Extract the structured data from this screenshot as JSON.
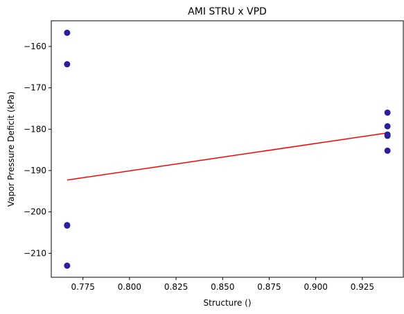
{
  "chart_data": {
    "type": "scatter",
    "title": "AMI STRU x VPD",
    "xlabel": "Structure ()",
    "ylabel": "Vapor Pressure Deficit (kPa)",
    "xlim": [
      0.758,
      0.947
    ],
    "ylim": [
      -215.8,
      -153.8
    ],
    "xticks": [
      0.775,
      0.8,
      0.825,
      0.85,
      0.875,
      0.9,
      0.925
    ],
    "xtick_labels": [
      "0.775",
      "0.800",
      "0.825",
      "0.850",
      "0.875",
      "0.900",
      "0.925"
    ],
    "yticks": [
      -160,
      -170,
      -180,
      -190,
      -200,
      -210
    ],
    "ytick_labels": [
      "−160",
      "−170",
      "−180",
      "−190",
      "−200",
      "−210"
    ],
    "grid": false,
    "points": [
      {
        "x": 0.7665,
        "y": -156.7
      },
      {
        "x": 0.7665,
        "y": -164.3
      },
      {
        "x": 0.7665,
        "y": -203.2
      },
      {
        "x": 0.7665,
        "y": -203.3
      },
      {
        "x": 0.7665,
        "y": -213.0
      },
      {
        "x": 0.9385,
        "y": -176.0
      },
      {
        "x": 0.9385,
        "y": -179.3
      },
      {
        "x": 0.9385,
        "y": -181.3
      },
      {
        "x": 0.9385,
        "y": -181.6
      },
      {
        "x": 0.9385,
        "y": -185.2
      }
    ],
    "trendline": {
      "x": [
        0.7665,
        0.9385
      ],
      "y": [
        -192.3,
        -180.9
      ]
    },
    "colors": {
      "points": "#2b1f9e",
      "trendline": "#ff0000"
    }
  }
}
